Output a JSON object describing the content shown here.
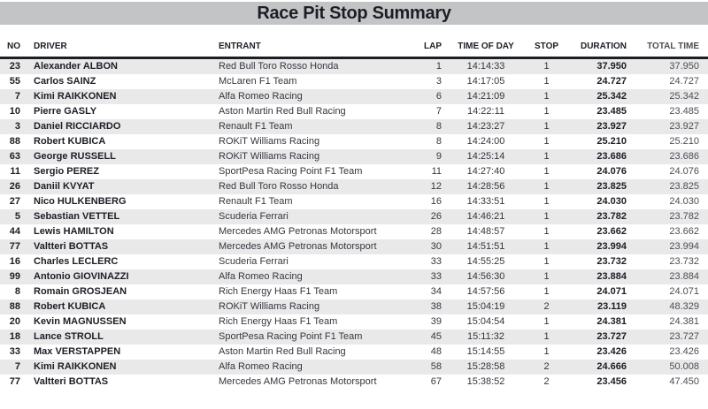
{
  "title": "Race Pit Stop Summary",
  "colors": {
    "title_bar_bg": "#c3c4c6",
    "text_dark": "#1b1e24",
    "text_regular": "#34373d",
    "text_total": "#4b4e54",
    "row_stripe": "#e9e9ea"
  },
  "table": {
    "columns": [
      {
        "key": "no",
        "label": "NO"
      },
      {
        "key": "driver",
        "label": "DRIVER"
      },
      {
        "key": "entrant",
        "label": "ENTRANT"
      },
      {
        "key": "lap",
        "label": "LAP"
      },
      {
        "key": "time_of_day",
        "label": "TIME OF DAY"
      },
      {
        "key": "stop",
        "label": "STOP"
      },
      {
        "key": "duration",
        "label": "DURATION"
      },
      {
        "key": "total_time",
        "label": "TOTAL TIME"
      }
    ],
    "rows": [
      {
        "no": "23",
        "driver": "Alexander ALBON",
        "entrant": "Red Bull Toro Rosso Honda",
        "lap": "1",
        "time_of_day": "14:14:33",
        "stop": "1",
        "duration": "37.950",
        "total_time": "37.950"
      },
      {
        "no": "55",
        "driver": "Carlos SAINZ",
        "entrant": "McLaren F1 Team",
        "lap": "3",
        "time_of_day": "14:17:05",
        "stop": "1",
        "duration": "24.727",
        "total_time": "24.727"
      },
      {
        "no": "7",
        "driver": "Kimi RAIKKONEN",
        "entrant": "Alfa Romeo Racing",
        "lap": "6",
        "time_of_day": "14:21:09",
        "stop": "1",
        "duration": "25.342",
        "total_time": "25.342"
      },
      {
        "no": "10",
        "driver": "Pierre GASLY",
        "entrant": "Aston Martin Red Bull Racing",
        "lap": "7",
        "time_of_day": "14:22:11",
        "stop": "1",
        "duration": "23.485",
        "total_time": "23.485"
      },
      {
        "no": "3",
        "driver": "Daniel RICCIARDO",
        "entrant": "Renault F1 Team",
        "lap": "8",
        "time_of_day": "14:23:27",
        "stop": "1",
        "duration": "23.927",
        "total_time": "23.927"
      },
      {
        "no": "88",
        "driver": "Robert KUBICA",
        "entrant": "ROKiT Williams Racing",
        "lap": "8",
        "time_of_day": "14:24:00",
        "stop": "1",
        "duration": "25.210",
        "total_time": "25.210"
      },
      {
        "no": "63",
        "driver": "George RUSSELL",
        "entrant": "ROKiT Williams Racing",
        "lap": "9",
        "time_of_day": "14:25:14",
        "stop": "1",
        "duration": "23.686",
        "total_time": "23.686"
      },
      {
        "no": "11",
        "driver": "Sergio PEREZ",
        "entrant": "SportPesa Racing Point F1 Team",
        "lap": "11",
        "time_of_day": "14:27:40",
        "stop": "1",
        "duration": "24.076",
        "total_time": "24.076"
      },
      {
        "no": "26",
        "driver": "Daniil KVYAT",
        "entrant": "Red Bull Toro Rosso Honda",
        "lap": "12",
        "time_of_day": "14:28:56",
        "stop": "1",
        "duration": "23.825",
        "total_time": "23.825"
      },
      {
        "no": "27",
        "driver": "Nico HULKENBERG",
        "entrant": "Renault F1 Team",
        "lap": "16",
        "time_of_day": "14:33:51",
        "stop": "1",
        "duration": "24.030",
        "total_time": "24.030"
      },
      {
        "no": "5",
        "driver": "Sebastian VETTEL",
        "entrant": "Scuderia Ferrari",
        "lap": "26",
        "time_of_day": "14:46:21",
        "stop": "1",
        "duration": "23.782",
        "total_time": "23.782"
      },
      {
        "no": "44",
        "driver": "Lewis HAMILTON",
        "entrant": "Mercedes AMG Petronas Motorsport",
        "lap": "28",
        "time_of_day": "14:48:57",
        "stop": "1",
        "duration": "23.662",
        "total_time": "23.662"
      },
      {
        "no": "77",
        "driver": "Valtteri BOTTAS",
        "entrant": "Mercedes AMG Petronas Motorsport",
        "lap": "30",
        "time_of_day": "14:51:51",
        "stop": "1",
        "duration": "23.994",
        "total_time": "23.994"
      },
      {
        "no": "16",
        "driver": "Charles LECLERC",
        "entrant": "Scuderia Ferrari",
        "lap": "33",
        "time_of_day": "14:55:25",
        "stop": "1",
        "duration": "23.732",
        "total_time": "23.732"
      },
      {
        "no": "99",
        "driver": "Antonio GIOVINAZZI",
        "entrant": "Alfa Romeo Racing",
        "lap": "33",
        "time_of_day": "14:56:30",
        "stop": "1",
        "duration": "23.884",
        "total_time": "23.884"
      },
      {
        "no": "8",
        "driver": "Romain GROSJEAN",
        "entrant": "Rich Energy Haas F1 Team",
        "lap": "34",
        "time_of_day": "14:57:56",
        "stop": "1",
        "duration": "24.071",
        "total_time": "24.071"
      },
      {
        "no": "88",
        "driver": "Robert KUBICA",
        "entrant": "ROKiT Williams Racing",
        "lap": "38",
        "time_of_day": "15:04:19",
        "stop": "2",
        "duration": "23.119",
        "total_time": "48.329"
      },
      {
        "no": "20",
        "driver": "Kevin MAGNUSSEN",
        "entrant": "Rich Energy Haas F1 Team",
        "lap": "39",
        "time_of_day": "15:04:54",
        "stop": "1",
        "duration": "24.381",
        "total_time": "24.381"
      },
      {
        "no": "18",
        "driver": "Lance STROLL",
        "entrant": "SportPesa Racing Point F1 Team",
        "lap": "45",
        "time_of_day": "15:11:32",
        "stop": "1",
        "duration": "23.727",
        "total_time": "23.727"
      },
      {
        "no": "33",
        "driver": "Max VERSTAPPEN",
        "entrant": "Aston Martin Red Bull Racing",
        "lap": "48",
        "time_of_day": "15:14:55",
        "stop": "1",
        "duration": "23.426",
        "total_time": "23.426"
      },
      {
        "no": "7",
        "driver": "Kimi RAIKKONEN",
        "entrant": "Alfa Romeo Racing",
        "lap": "58",
        "time_of_day": "15:28:58",
        "stop": "2",
        "duration": "24.666",
        "total_time": "50.008"
      },
      {
        "no": "77",
        "driver": "Valtteri BOTTAS",
        "entrant": "Mercedes AMG Petronas Motorsport",
        "lap": "67",
        "time_of_day": "15:38:52",
        "stop": "2",
        "duration": "23.456",
        "total_time": "47.450"
      }
    ]
  }
}
